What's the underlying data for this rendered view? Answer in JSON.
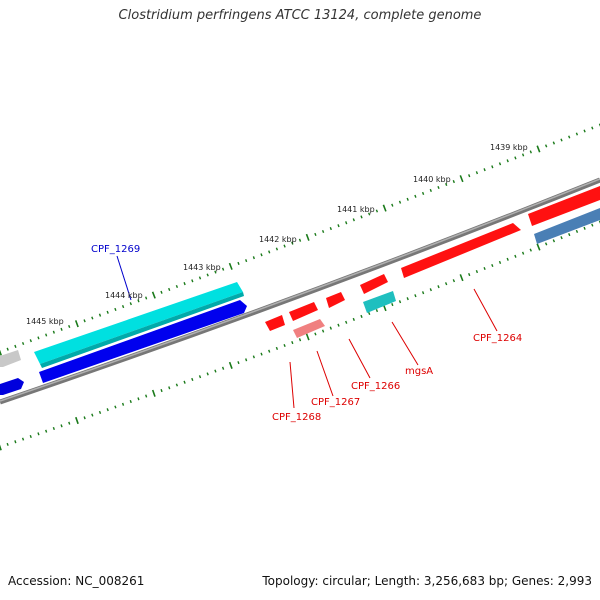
{
  "title": "Clostridium perfringens ATCC 13124, complete genome",
  "footer": {
    "accession": "Accession: NC_008261",
    "summary": "Topology: circular; Length: 3,256,683 bp; Genes: 2,993"
  },
  "colors": {
    "backbone": "#777777",
    "tick": "#1a7a1a",
    "forward_gene": "#ff0000",
    "forward_gene_light": "#f08080",
    "reverse_gene": "#0000ee",
    "cyan_gene": "#00e5e5",
    "teal_gene": "#1fbfbf",
    "steel_gene": "#4a7fb5",
    "gray_gene": "#c0c0c0",
    "red_label": "#dd0000",
    "blue_label": "#0000cc"
  },
  "ruler": {
    "labels": [
      "1439 kbp",
      "1440 kbp",
      "1441 kbp",
      "1442 kbp",
      "1443 kbp",
      "1444 kbp",
      "1445 kbp"
    ]
  },
  "genes": {
    "labels": [
      {
        "text": "CPF_1269",
        "color": "blue_label"
      },
      {
        "text": "CPF_1264",
        "color": "red_label"
      },
      {
        "text": "mgsA",
        "color": "red_label"
      },
      {
        "text": "CPF_1266",
        "color": "red_label"
      },
      {
        "text": "CPF_1267",
        "color": "red_label"
      },
      {
        "text": "CPF_1268",
        "color": "red_label"
      }
    ]
  }
}
